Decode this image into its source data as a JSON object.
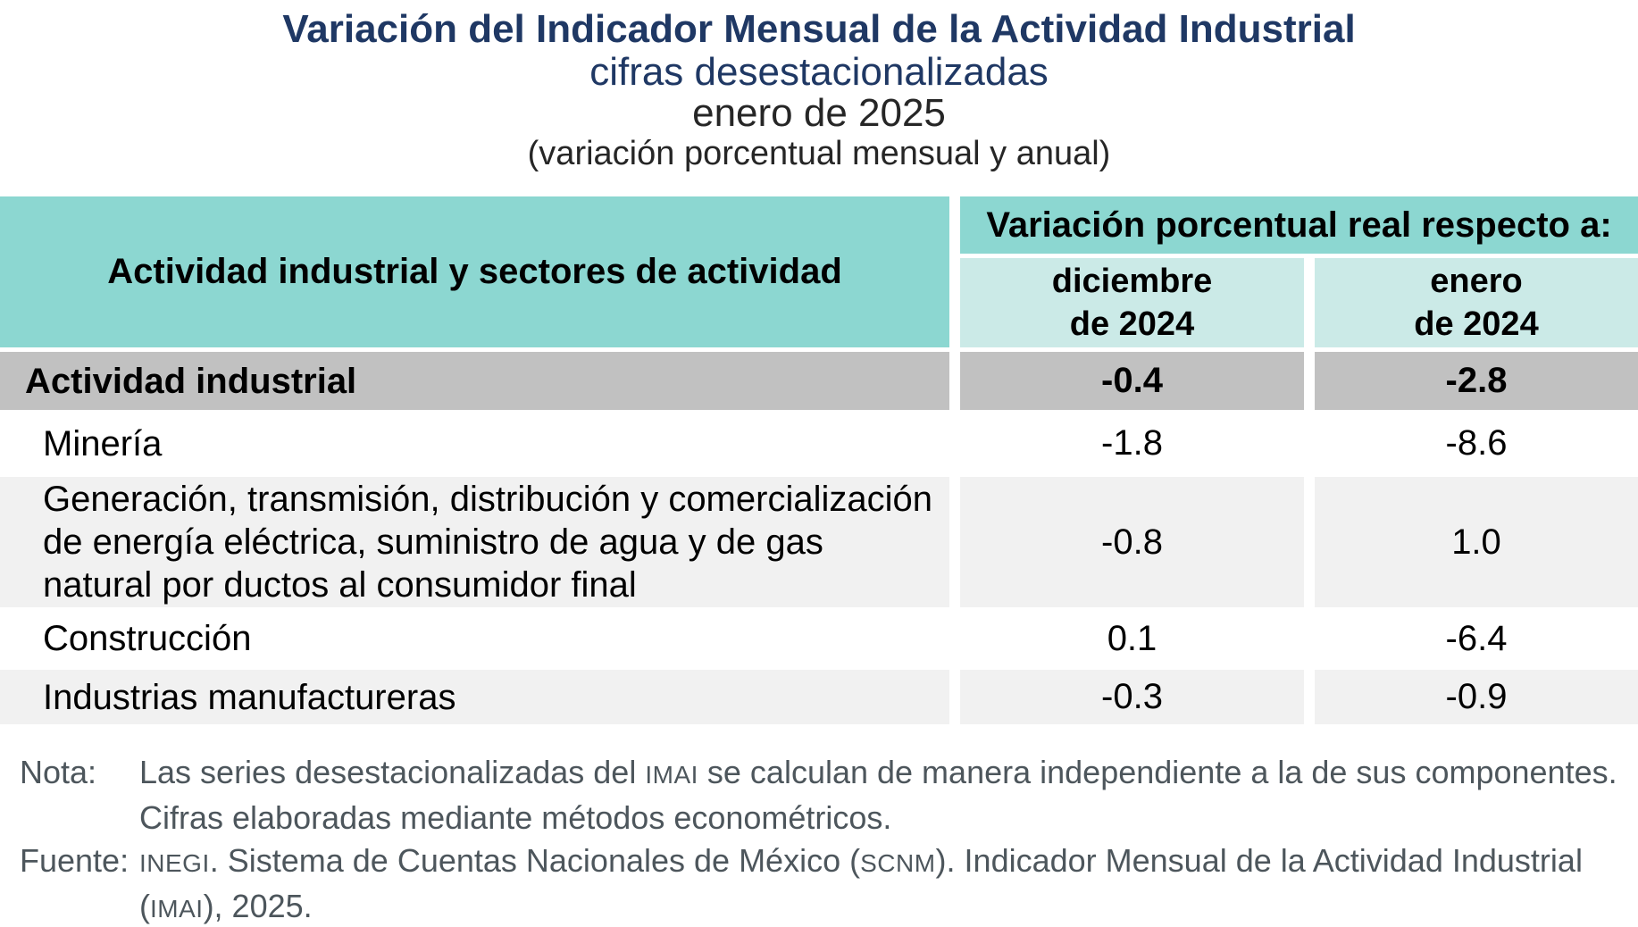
{
  "heading": {
    "title": "Variación del Indicador Mensual de la Actividad Industrial",
    "subtitle": "cifras desestacionalizadas",
    "period": "enero de 2025",
    "measure_note": "(variación porcentual mensual y anual)"
  },
  "colors": {
    "title_navy": "#1F3864",
    "subtitle_navy": "#1F3864",
    "period_gray": "#262626",
    "header_teal": "#8CD7D1",
    "subheader_teal": "#CBEAE7",
    "total_row_gray": "#C1C1C1",
    "alt_row_gray": "#F1F1F1",
    "note_slate": "#4D565C",
    "table_text": "#000000"
  },
  "chart_data": {
    "type": "table",
    "title": "Variación del Indicador Mensual de la Actividad Industrial",
    "header": {
      "left": "Actividad industrial y sectores de actividad",
      "group": "Variación porcentual real respecto a:",
      "cols": [
        {
          "line1": "diciembre",
          "line2": "de 2024"
        },
        {
          "line1": "enero",
          "line2": "de 2024"
        }
      ]
    },
    "rows": [
      {
        "name": "Actividad industrial",
        "total": true,
        "values": [
          "-0.4",
          "-2.8"
        ]
      },
      {
        "name": "Minería",
        "total": false,
        "values": [
          "-1.8",
          "-8.6"
        ]
      },
      {
        "name": "Generación, transmisión, distribución y comercialización de energía eléctrica, suministro de agua y de gas natural por ductos al consumidor final",
        "total": false,
        "values": [
          "-0.8",
          "1.0"
        ]
      },
      {
        "name": "Construcción",
        "total": false,
        "values": [
          "0.1",
          "-6.4"
        ]
      },
      {
        "name": "Industrias manufactureras",
        "total": false,
        "values": [
          "-0.3",
          "-0.9"
        ]
      }
    ]
  },
  "notes": {
    "rows": [
      {
        "label": "Nota:",
        "segments": [
          {
            "text": "Las series desestacionalizadas del "
          },
          {
            "text": "IMAI",
            "small": true
          },
          {
            "text": " se calculan de manera independiente a la de sus componentes."
          }
        ]
      },
      {
        "label": "",
        "segments": [
          {
            "text": "Cifras elaboradas mediante métodos econométricos."
          }
        ]
      },
      {
        "label": "Fuente:",
        "segments": [
          {
            "text": "INEGI",
            "small": true
          },
          {
            "text": ". Sistema de Cuentas Nacionales de México ("
          },
          {
            "text": "SCNM",
            "small": true
          },
          {
            "text": "). Indicador Mensual de la Actividad Industrial"
          }
        ]
      },
      {
        "label": "",
        "segments": [
          {
            "text": "("
          },
          {
            "text": "IMAI",
            "small": true
          },
          {
            "text": "), 2025."
          }
        ]
      }
    ]
  }
}
